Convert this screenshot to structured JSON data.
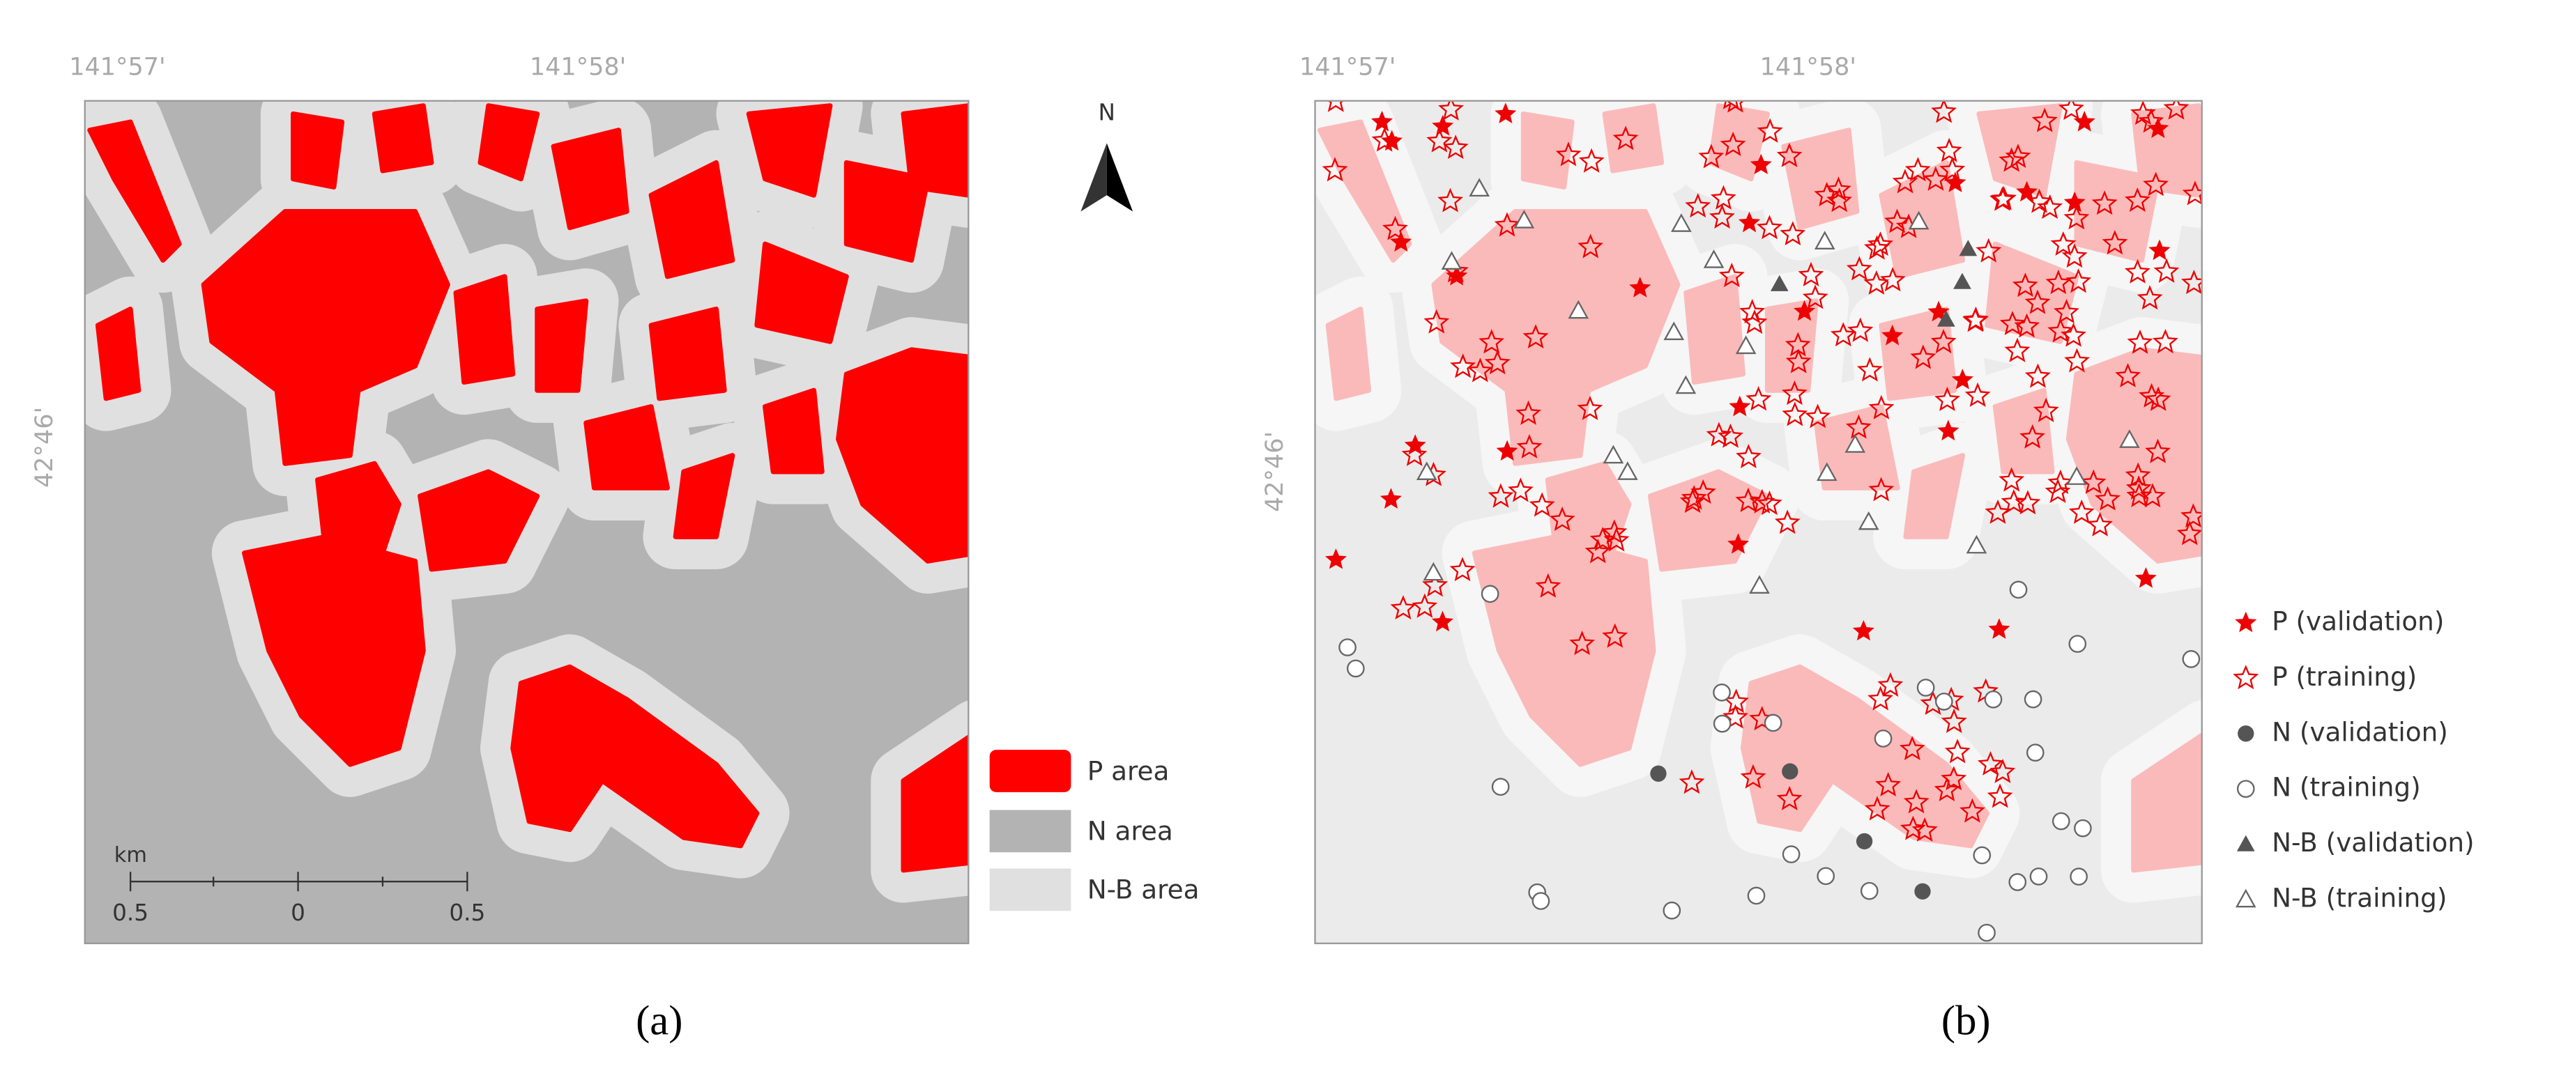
{
  "panels": [
    {
      "label": "(a)",
      "x_ticks": [
        "141°57'",
        "141°58'"
      ],
      "y_ticks": [
        "42°46'"
      ],
      "north": "N",
      "legend": [
        "P area",
        "N area",
        "N-B area"
      ],
      "scale": {
        "unit": "km",
        "ticks": [
          "0.5",
          "0",
          "0.5"
        ]
      }
    },
    {
      "label": "(b)",
      "x_ticks": [
        "141°57'",
        "141°58'"
      ],
      "y_ticks": [
        "42°46'"
      ],
      "legend": [
        "P (validation)",
        "P (training)",
        "N (validation)",
        "N (training)",
        "N-B (validation)",
        "N-B (training)"
      ]
    }
  ]
}
